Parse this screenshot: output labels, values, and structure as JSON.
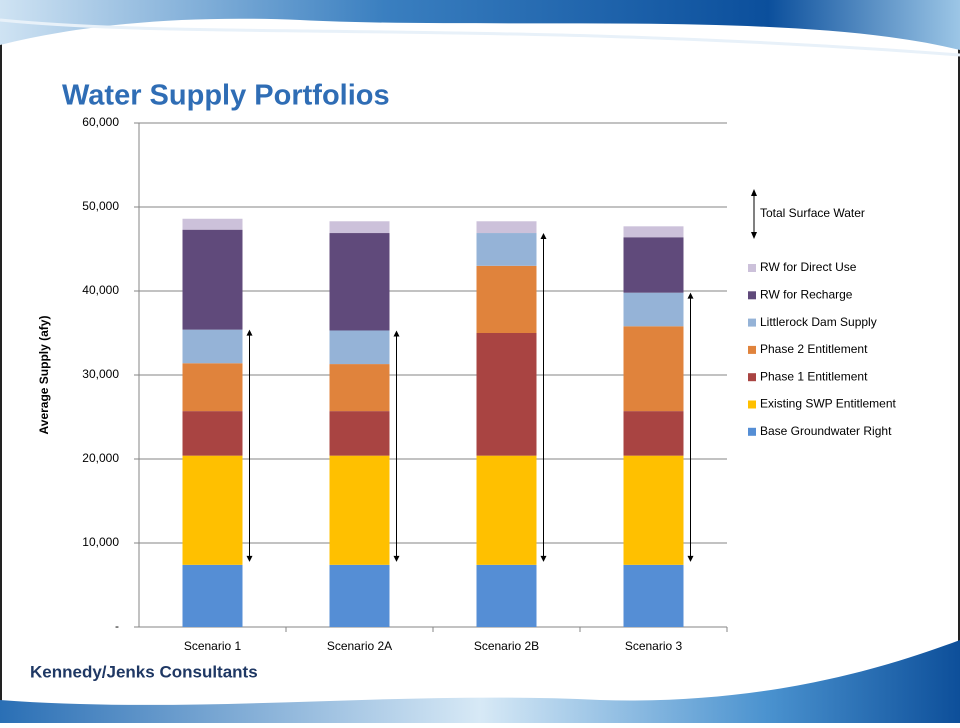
{
  "header": {
    "title": "Water Supply Portfolios"
  },
  "footer": {
    "company": "Kennedy/Jenks Consultants"
  },
  "chart_data": {
    "type": "bar",
    "stacked": true,
    "y_label": "Average Supply (afy)",
    "categories": [
      "Scenario 1",
      "Scenario 2A",
      "Scenario 2B",
      "Scenario 3"
    ],
    "series": [
      {
        "name": "Base Groundwater Right",
        "color": "#558ed5",
        "values": [
          7400,
          7400,
          7400,
          7400
        ]
      },
      {
        "name": "Existing SWP Entitlement",
        "color": "#ffc000",
        "values": [
          13000,
          13000,
          13000,
          13000
        ]
      },
      {
        "name": "Phase 1 Entitlement",
        "color": "#a94442",
        "values": [
          5300,
          5300,
          14600,
          5300
        ]
      },
      {
        "name": "Phase 2 Entitlement",
        "color": "#e0833c",
        "values": [
          5700,
          5600,
          8000,
          10100
        ]
      },
      {
        "name": "Littlerock Dam Supply",
        "color": "#95b3d7",
        "values": [
          4000,
          4000,
          3900,
          4000
        ]
      },
      {
        "name": "RW for Recharge",
        "color": "#604a7b",
        "values": [
          11900,
          11600,
          0,
          6600
        ]
      },
      {
        "name": "RW for Direct Use",
        "color": "#ccc1da",
        "values": [
          1300,
          1400,
          1400,
          1300
        ]
      }
    ],
    "annotation": "Total Surface Water",
    "ylim": [
      0,
      60000
    ],
    "yticks": [
      {
        "value": 0,
        "label": "-"
      },
      {
        "value": 10000,
        "label": "10,000"
      },
      {
        "value": 20000,
        "label": "20,000"
      },
      {
        "value": 30000,
        "label": "30,000"
      },
      {
        "value": 40000,
        "label": "40,000"
      },
      {
        "value": 50000,
        "label": "50,000"
      },
      {
        "value": 60000,
        "label": "60,000"
      }
    ],
    "grid": true,
    "legend": "right"
  }
}
